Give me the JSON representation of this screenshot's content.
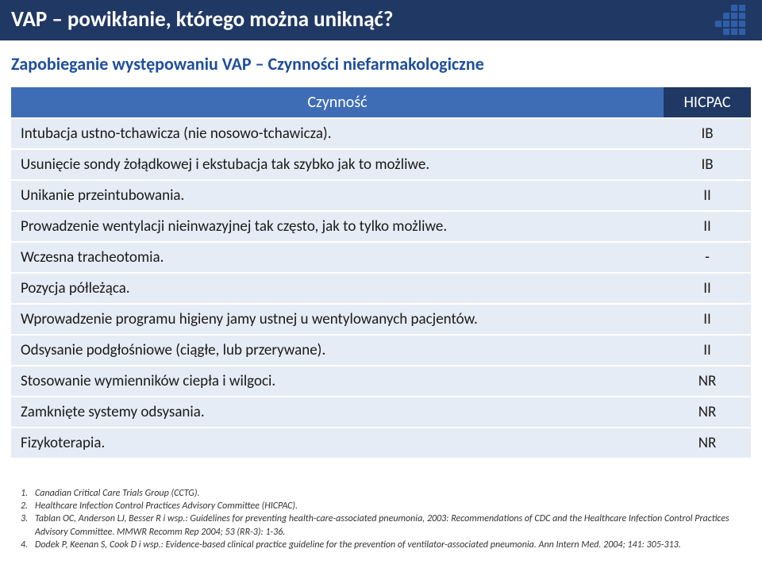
{
  "colors": {
    "title_bg": "#203864",
    "subtitle_text": "#1f4e9b",
    "header_action_bg": "#3e6db5",
    "header_rating_bg": "#203864",
    "row_bg": "#e6ecf5",
    "logo_color": "#2f5fa8"
  },
  "title": "VAP – powikłanie, którego można uniknąć?",
  "subtitle": "Zapobieganie występowaniu VAP – Czynności niefarmakologiczne",
  "table": {
    "header_action": "Czynność",
    "header_rating": "HICPAC",
    "rows": [
      {
        "action": "Intubacja ustno-tchawicza (nie nosowo-tchawicza).",
        "rating": "IB"
      },
      {
        "action": "Usunięcie sondy żołądkowej i ekstubacja tak szybko jak to możliwe.",
        "rating": "IB"
      },
      {
        "action": "Unikanie przeintubowania.",
        "rating": "II"
      },
      {
        "action": "Prowadzenie wentylacji nieinwazyjnej tak często, jak to tylko możliwe.",
        "rating": "II"
      },
      {
        "action": "Wczesna tracheotomia.",
        "rating": "-"
      },
      {
        "action": "Pozycja półleżąca.",
        "rating": "II"
      },
      {
        "action": "Wprowadzenie programu higieny jamy ustnej u wentylowanych pacjentów.",
        "rating": "II"
      },
      {
        "action": "Odsysanie podgłośniowe (ciągłe, lub przerywane).",
        "rating": "II"
      },
      {
        "action": "Stosowanie wymienników ciepła i wilgoci.",
        "rating": "NR"
      },
      {
        "action": "Zamknięte systemy odsysania.",
        "rating": "NR"
      },
      {
        "action": "Fizykoterapia.",
        "rating": "NR"
      }
    ]
  },
  "references": [
    "Canadian Critical Care Trials Group (CCTG).",
    "Healthcare Infection Control Practices Advisory Committee (HICPAC).",
    "Tablan OC, Anderson LJ, Besser R i wsp.: Guidelines for preventing health-care-associated pneumonia, 2003: Recommendations of CDC and the Healthcare Infection Control Practices Advisory Committee. MMWR Recomm Rep 2004; 53 (RR-3): 1-36.",
    "Dodek P, Keenan S, Cook D i wsp.: Evidence-based clinical practice guideline for the prevention of ventilator-associated pneumonia. Ann Intern Med. 2004; 141: 305-313."
  ]
}
